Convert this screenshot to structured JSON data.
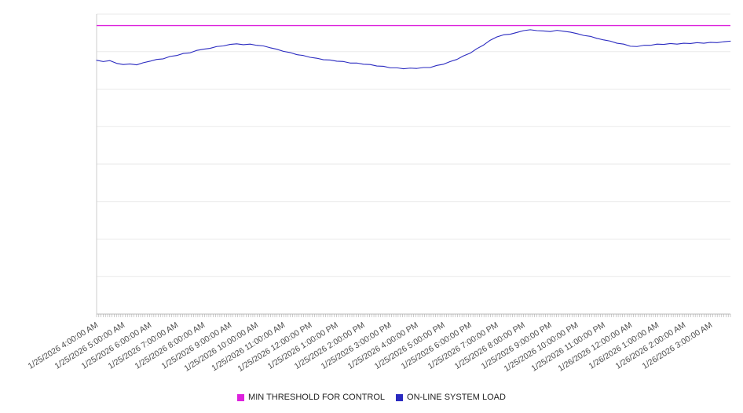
{
  "chart_data": {
    "type": "line",
    "title": "",
    "xlabel": "",
    "ylabel": "",
    "ylim": [
      0,
      100
    ],
    "grid_divisions": 8,
    "legend_position": "bottom",
    "x_labels": [
      "1/25/2026 4:00:00 AM",
      "1/25/2026 5:00:00 AM",
      "1/25/2026 6:00:00 AM",
      "1/25/2026 7:00:00 AM",
      "1/25/2026 8:00:00 AM",
      "1/25/2026 9:00:00 AM",
      "1/25/2026 10:00:00 AM",
      "1/25/2026 11:00:00 AM",
      "1/25/2026 12:00:00 PM",
      "1/25/2026 1:00:00 PM",
      "1/25/2026 2:00:00 PM",
      "1/25/2026 3:00:00 PM",
      "1/25/2026 4:00:00 PM",
      "1/25/2026 5:00:00 PM",
      "1/25/2026 6:00:00 PM",
      "1/25/2026 7:00:00 PM",
      "1/25/2026 8:00:00 PM",
      "1/25/2026 9:00:00 PM",
      "1/25/2026 10:00:00 PM",
      "1/25/2026 11:00:00 PM",
      "1/26/2026 12:00:00 AM",
      "1/26/2026 1:00:00 AM",
      "1/26/2026 2:00:00 AM",
      "1/26/2026 3:00:00 AM"
    ],
    "points_per_hour": 4,
    "series": [
      {
        "name": "MIN THRESHOLD FOR CONTROL",
        "color": "#dd22dd",
        "kind": "constant",
        "value": 96.2
      },
      {
        "name": "ON-LINE SYSTEM LOAD",
        "color": "#2a2ac0",
        "kind": "line",
        "values": [
          84.6,
          84.2,
          84.5,
          83.6,
          83.2,
          83.4,
          83.1,
          83.8,
          84.3,
          84.9,
          85.1,
          85.9,
          86.2,
          86.9,
          87.1,
          87.9,
          88.3,
          88.6,
          89.2,
          89.4,
          89.9,
          90.1,
          89.8,
          90.0,
          89.6,
          89.4,
          88.8,
          88.3,
          87.6,
          87.2,
          86.5,
          86.2,
          85.6,
          85.3,
          84.8,
          84.7,
          84.3,
          84.2,
          83.7,
          83.7,
          83.3,
          83.2,
          82.7,
          82.6,
          82.1,
          82.1,
          81.8,
          82.0,
          81.9,
          82.2,
          82.2,
          82.9,
          83.3,
          84.2,
          84.9,
          86.1,
          87.0,
          88.5,
          89.7,
          91.3,
          92.4,
          93.1,
          93.3,
          93.9,
          94.5,
          94.8,
          94.5,
          94.4,
          94.2,
          94.6,
          94.3,
          94.0,
          93.5,
          92.9,
          92.6,
          91.9,
          91.4,
          91.0,
          90.3,
          90.0,
          89.3,
          89.2,
          89.6,
          89.6,
          90.0,
          89.9,
          90.2,
          90.0,
          90.3,
          90.2,
          90.5,
          90.3,
          90.6,
          90.5,
          90.8,
          91.0
        ]
      }
    ]
  },
  "legend": {
    "items": [
      {
        "label": "MIN THRESHOLD FOR CONTROL",
        "color": "#dd22dd"
      },
      {
        "label": "ON-LINE SYSTEM LOAD",
        "color": "#2a2ac0"
      }
    ]
  }
}
